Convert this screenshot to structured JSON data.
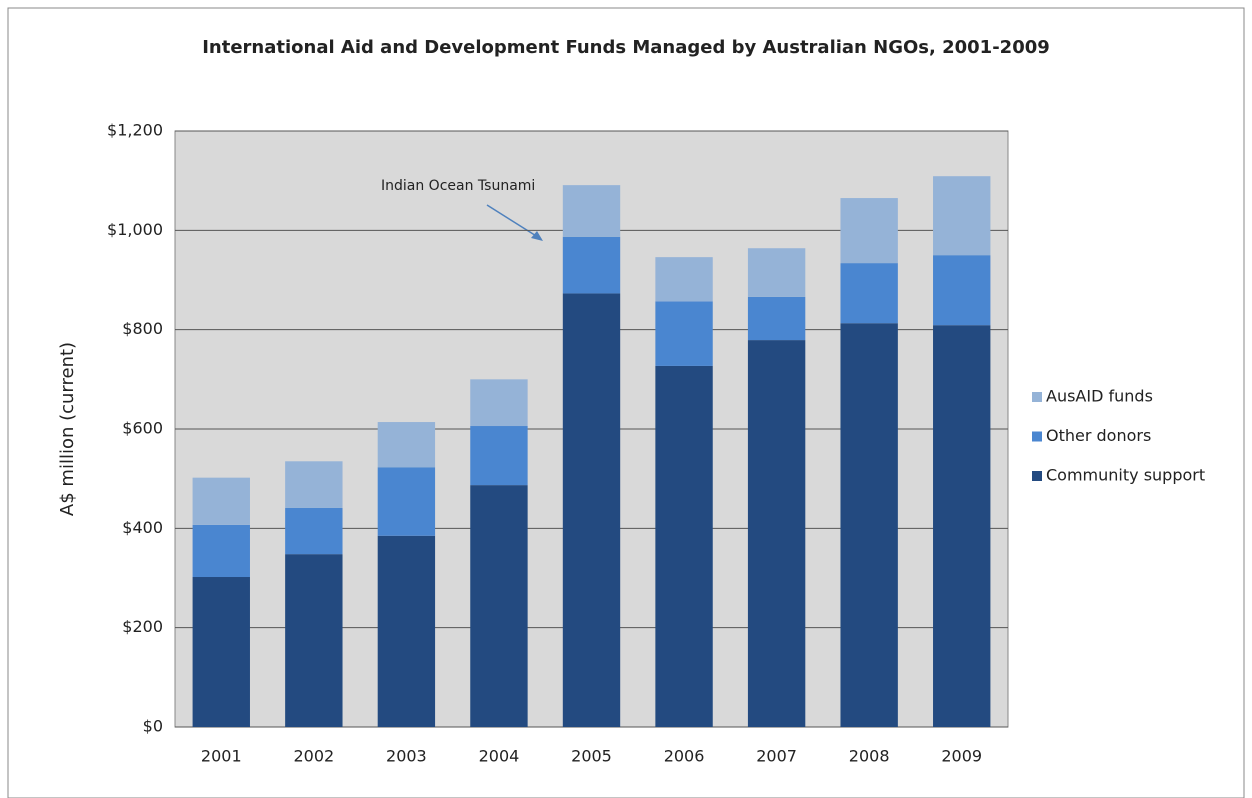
{
  "chart_data": {
    "type": "stacked_bar",
    "title": "International Aid and Development Funds Managed by Australian NGOs, 2001-2009",
    "y_label": "A$ million (current)",
    "annotation": "Indian Ocean Tsunami",
    "categories": [
      "2001",
      "2002",
      "2003",
      "2004",
      "2005",
      "2006",
      "2007",
      "2008",
      "2009"
    ],
    "series": [
      {
        "name": "Community support",
        "color": "#234a80",
        "values": [
          302,
          348,
          385,
          487,
          873,
          727,
          779,
          813,
          809
        ]
      },
      {
        "name": "Other donors",
        "color": "#4a86d0",
        "values": [
          105,
          93,
          138,
          119,
          114,
          130,
          87,
          121,
          141
        ]
      },
      {
        "name": "AusAID funds",
        "color": "#95b3d7",
        "values": [
          95,
          94,
          91,
          94,
          104,
          89,
          98,
          131,
          159
        ]
      }
    ],
    "ylim": [
      0,
      1200
    ],
    "yticks": [
      {
        "value": 0,
        "label": "$0"
      },
      {
        "value": 200,
        "label": "$200"
      },
      {
        "value": 400,
        "label": "$400"
      },
      {
        "value": 600,
        "label": "$600"
      },
      {
        "value": 800,
        "label": "$800"
      },
      {
        "value": 1000,
        "label": "$1,000"
      },
      {
        "value": 1200,
        "label": "$1,200"
      }
    ],
    "grid": true,
    "legend": "right"
  }
}
